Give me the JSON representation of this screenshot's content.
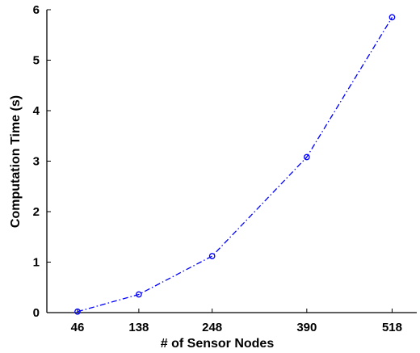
{
  "chart_data": {
    "type": "line",
    "xlabel": "# of Sensor Nodes",
    "ylabel": "Computation Time (s)",
    "categories": [
      "46",
      "138",
      "248",
      "390",
      "518"
    ],
    "x": [
      46,
      138,
      248,
      390,
      518
    ],
    "values": [
      0.02,
      0.36,
      1.12,
      3.08,
      5.85
    ],
    "ylim": [
      0,
      6
    ],
    "yticks": [
      0,
      1,
      2,
      3,
      4,
      5,
      6
    ],
    "line_style": "dash-dot",
    "marker": "open-circle",
    "color": "#0000ff",
    "grid": false,
    "legend": "none"
  }
}
